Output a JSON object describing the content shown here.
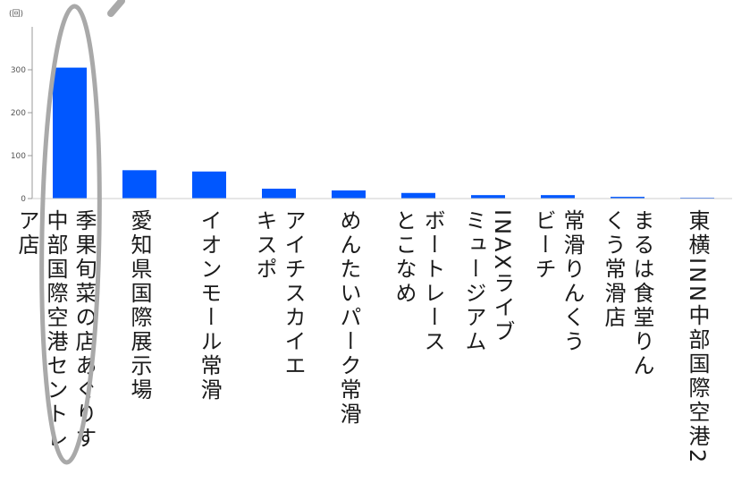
{
  "chart_data": {
    "type": "bar",
    "categories": [
      "季果旬菜の店あぐりす\n中部国際空港セントレ\nア店",
      "愛知県国際展示場",
      "イオンモール常滑",
      "アイチスカイエ\nキスポ",
      "めんたいパーク常滑",
      "ボートレース\nとこなめ",
      "INAXライブ\nミュージアム",
      "常滑りんくう\nビーチ",
      "まるは食堂りん\nくう常滑店",
      "東横INN中部国際空港2"
    ],
    "values": [
      305,
      66,
      63,
      23,
      19,
      13,
      8,
      8,
      4,
      2
    ],
    "ylabel": "(回)",
    "ylim": [
      0,
      400
    ],
    "yticks": [
      0,
      100,
      200,
      300
    ],
    "grid": false,
    "legend": false,
    "bar_color": "#0057ff",
    "axis_color": "#999999",
    "baseline_color": "#cccccc"
  },
  "annotations": {
    "highlight_category_index": 0,
    "highlight_shape": "ellipse",
    "color": "#a9a9a9"
  }
}
